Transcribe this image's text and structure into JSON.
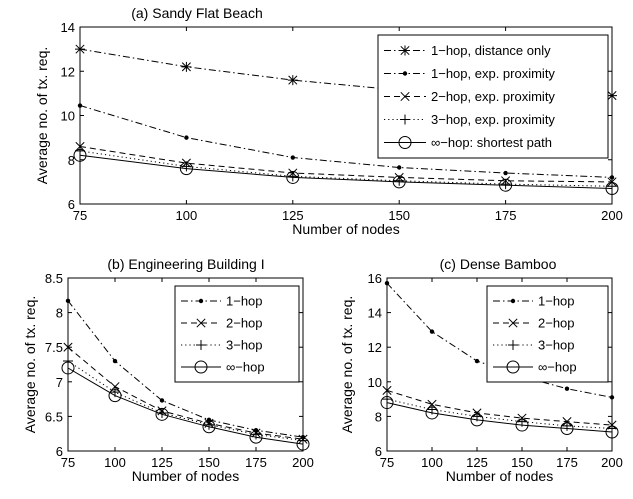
{
  "chart_data": [
    {
      "type": "line",
      "title": "(a) Sandy Flat Beach",
      "xlabel": "Number of nodes",
      "ylabel": "Average no. of tx. req.",
      "x": [
        75,
        100,
        125,
        150,
        175,
        200
      ],
      "xlim": [
        75,
        200
      ],
      "ylim": [
        6,
        14
      ],
      "yticks": [
        6,
        8,
        10,
        12,
        14
      ],
      "grid": false,
      "legend_position": "top-right",
      "series": [
        {
          "name": "1−hop, distance only",
          "values": [
            13.0,
            12.2,
            11.6,
            11.15,
            11.0,
            10.9
          ],
          "style": "dashdot",
          "marker": "asterisk"
        },
        {
          "name": "1−hop, exp. proximity",
          "values": [
            10.45,
            9.0,
            8.1,
            7.65,
            7.4,
            7.2
          ],
          "style": "dashdot",
          "marker": "dot"
        },
        {
          "name": "2−hop, exp. proximity",
          "values": [
            8.6,
            7.85,
            7.4,
            7.2,
            7.05,
            7.0
          ],
          "style": "dashed",
          "marker": "x"
        },
        {
          "name": "3−hop, exp. proximity",
          "values": [
            8.4,
            7.7,
            7.25,
            7.05,
            6.9,
            6.8
          ],
          "style": "dotted",
          "marker": "plus"
        },
        {
          "name": "∞−hop: shortest path",
          "values": [
            8.2,
            7.6,
            7.2,
            7.0,
            6.85,
            6.7
          ],
          "style": "solid",
          "marker": "circle"
        }
      ]
    },
    {
      "type": "line",
      "title": "(b) Engineering Building I",
      "xlabel": "Number of nodes",
      "ylabel": "Average no. of tx. req.",
      "x": [
        75,
        100,
        125,
        150,
        175,
        200
      ],
      "xlim": [
        75,
        200
      ],
      "ylim": [
        6,
        8.5
      ],
      "yticks": [
        6,
        6.5,
        7,
        7.5,
        8,
        8.5
      ],
      "grid": false,
      "legend_position": "top-right",
      "series": [
        {
          "name": "1−hop",
          "values": [
            8.17,
            7.3,
            6.73,
            6.45,
            6.3,
            6.2
          ],
          "style": "dashdot",
          "marker": "dot"
        },
        {
          "name": "2−hop",
          "values": [
            7.5,
            6.93,
            6.58,
            6.4,
            6.26,
            6.17
          ],
          "style": "dashed",
          "marker": "x"
        },
        {
          "name": "3−hop",
          "values": [
            7.3,
            6.85,
            6.55,
            6.38,
            6.24,
            6.15
          ],
          "style": "dotted",
          "marker": "plus"
        },
        {
          "name": "∞−hop",
          "values": [
            7.2,
            6.8,
            6.53,
            6.35,
            6.2,
            6.1
          ],
          "style": "solid",
          "marker": "circle"
        }
      ]
    },
    {
      "type": "line",
      "title": "(c) Dense Bamboo",
      "xlabel": "Number of nodes",
      "ylabel": "Average no. of tx. req.",
      "x": [
        75,
        100,
        125,
        150,
        175,
        200
      ],
      "xlim": [
        75,
        200
      ],
      "ylim": [
        6,
        16
      ],
      "yticks": [
        6,
        8,
        10,
        12,
        14,
        16
      ],
      "grid": false,
      "legend_position": "top-right",
      "series": [
        {
          "name": "1−hop",
          "values": [
            15.7,
            12.9,
            11.2,
            10.3,
            9.6,
            9.1
          ],
          "style": "dashdot",
          "marker": "dot"
        },
        {
          "name": "2−hop",
          "values": [
            9.5,
            8.7,
            8.2,
            7.9,
            7.7,
            7.5
          ],
          "style": "dashed",
          "marker": "x"
        },
        {
          "name": "3−hop",
          "values": [
            9.0,
            8.4,
            8.0,
            7.7,
            7.45,
            7.3
          ],
          "style": "dotted",
          "marker": "plus"
        },
        {
          "name": "∞−hop",
          "values": [
            8.8,
            8.2,
            7.8,
            7.5,
            7.3,
            7.1
          ],
          "style": "solid",
          "marker": "circle"
        }
      ]
    }
  ]
}
